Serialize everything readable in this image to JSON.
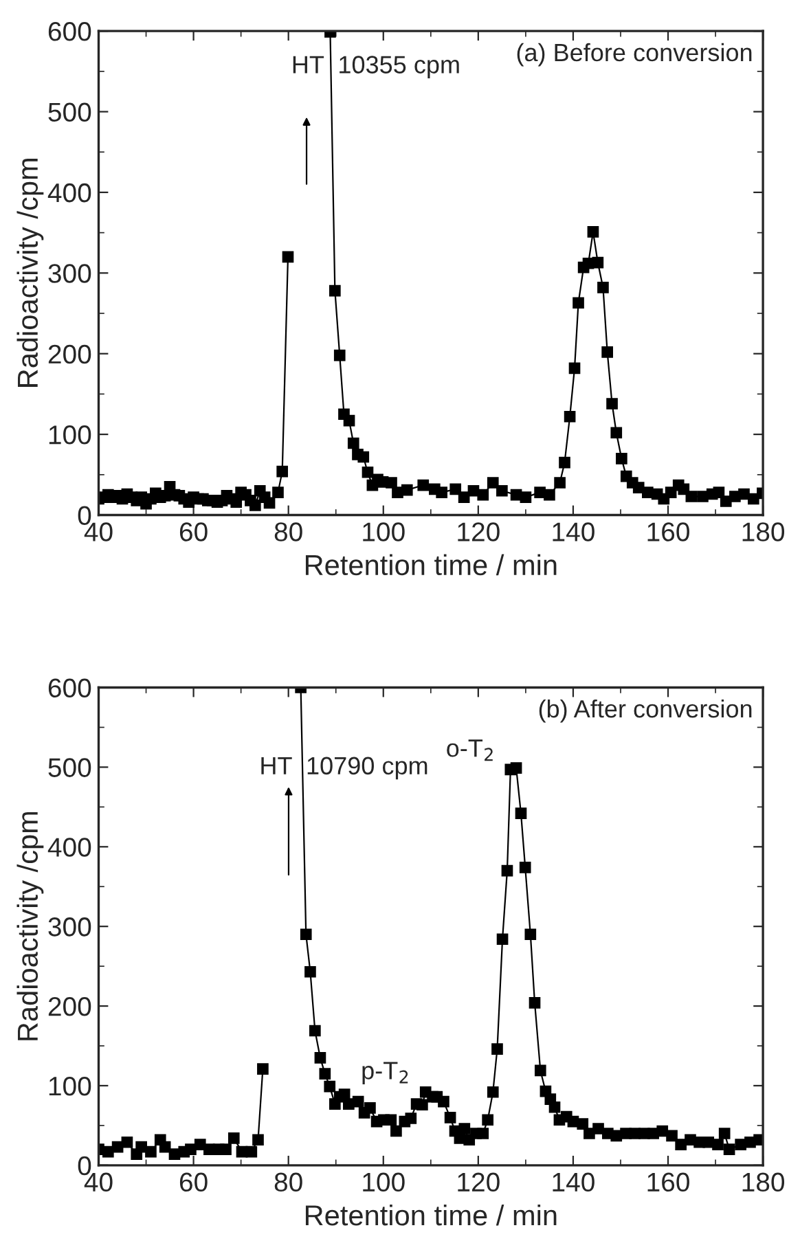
{
  "chart_data": [
    {
      "type": "line",
      "title": "(a) Before conversion",
      "xlabel": "Retention time / min",
      "ylabel": "Radioactivity /cpm",
      "xlim": [
        40,
        180
      ],
      "ylim": [
        0,
        600
      ],
      "xticks": [
        40,
        60,
        80,
        100,
        120,
        140,
        160,
        180
      ],
      "yticks": [
        0,
        100,
        200,
        300,
        400,
        500,
        600
      ],
      "marker": "square",
      "line_style": "solid",
      "annotations": [
        "HT  10355 cpm"
      ],
      "series": [
        {
          "color": "#000000",
          "x": [
            40,
            41,
            42,
            43,
            44,
            45,
            46,
            47,
            48,
            49,
            50,
            51,
            52,
            53,
            54,
            55,
            56,
            57,
            58,
            59,
            60,
            61,
            62,
            63,
            64,
            65,
            66,
            67,
            68,
            69,
            70,
            71,
            72,
            73,
            74,
            75,
            76,
            77.8,
            78.7,
            79.9,
            84,
            88.8,
            89.8,
            90.8,
            91.7,
            92.8,
            93.7,
            94.6,
            95.8,
            96.7,
            97.7,
            98.8,
            99.9,
            101.7,
            103,
            105,
            108.4,
            110.8,
            112.3,
            115.2,
            117,
            119,
            121,
            123.1,
            125,
            128,
            130,
            133,
            135,
            137.2,
            138.2,
            139.3,
            140.3,
            141.1,
            142.2,
            143.2,
            144.2,
            145.2,
            146.3,
            147.2,
            148.2,
            149.1,
            150.2,
            151.2,
            152.5,
            153.8,
            155.7,
            157.7,
            159.1,
            160.6,
            162.2,
            163.3,
            164.9,
            167.3,
            169.3,
            170.7,
            172.2,
            174.1,
            176,
            178,
            179.9
          ],
          "values": [
            20,
            22,
            25,
            22,
            24,
            20,
            26,
            22,
            18,
            22,
            14,
            20,
            27,
            22,
            24,
            35,
            25,
            24,
            20,
            16,
            22,
            20,
            20,
            18,
            18,
            16,
            18,
            24,
            20,
            16,
            28,
            25,
            18,
            12,
            30,
            22,
            15,
            28,
            54,
            320,
            null,
            599,
            278,
            198,
            125,
            117,
            89,
            75,
            72,
            53,
            37,
            44,
            41,
            40,
            28,
            31,
            37,
            32,
            28,
            32,
            22,
            30,
            25,
            40,
            30,
            25,
            22,
            28,
            25,
            40,
            65,
            122,
            182,
            263,
            307,
            312,
            351,
            313,
            282,
            202,
            138,
            102,
            70,
            48,
            40,
            34,
            28,
            26,
            20,
            28,
            37,
            32,
            23,
            23,
            26,
            28,
            17,
            23,
            26,
            20,
            27
          ]
        }
      ]
    },
    {
      "type": "line",
      "title": "(b) After conversion",
      "xlabel": "Retention time / min",
      "ylabel": "Radioactivity /cpm",
      "xlim": [
        40,
        180
      ],
      "ylim": [
        0,
        600
      ],
      "xticks": [
        40,
        60,
        80,
        100,
        120,
        140,
        160,
        180
      ],
      "yticks": [
        0,
        100,
        200,
        300,
        400,
        500,
        600
      ],
      "marker": "square",
      "line_style": "solid",
      "annotations": [
        "HT  10790 cpm",
        {
          "text": "o-T$_{2}$",
          "x": 126.8,
          "y": 497
        },
        {
          "text": "p-T$_{2}$",
          "x": 108.9,
          "y": 92
        }
      ],
      "series": [
        {
          "color": "#000000",
          "x": [
            40,
            42,
            44,
            46,
            48,
            49,
            51,
            53,
            54,
            56,
            58,
            59.4,
            61.4,
            63.3,
            65.3,
            66.8,
            68.5,
            70.2,
            72.2,
            73.6,
            74.6,
            78,
            82.6,
            83.7,
            84.6,
            85.6,
            86.7,
            87.7,
            88.7,
            89.8,
            90.8,
            91.8,
            92.7,
            94.7,
            96,
            97.2,
            98.6,
            100.1,
            101.6,
            102.7,
            104.5,
            105.8,
            107,
            108.2,
            108.9,
            110.4,
            111.3,
            112.7,
            114.1,
            115.1,
            116.1,
            117.1,
            118.1,
            119.5,
            121,
            122,
            123.1,
            124,
            125.1,
            126.1,
            126.8,
            128,
            129,
            129.9,
            131,
            131.9,
            133.1,
            134.2,
            135.2,
            136.1,
            137.1,
            138.6,
            140,
            142,
            143.4,
            145.3,
            147.3,
            149.1,
            151.1,
            153,
            155,
            156.9,
            158.8,
            160.8,
            162.7,
            164.7,
            166.6,
            168.5,
            170.5,
            171.9,
            172.9,
            175.3,
            177.3,
            179.2
          ],
          "values": [
            20,
            17,
            23,
            29,
            14,
            23,
            17,
            32,
            23,
            14,
            17,
            20,
            26,
            20,
            20,
            20,
            34,
            17,
            17,
            32,
            121,
            null,
            600,
            290,
            243,
            169,
            135,
            115,
            99,
            77,
            86,
            89,
            77,
            80,
            66,
            72,
            55,
            57,
            57,
            43,
            55,
            59,
            77,
            76,
            92,
            86,
            86,
            80,
            60,
            43,
            34,
            46,
            32,
            40,
            40,
            57,
            92,
            146,
            284,
            370,
            497,
            499,
            442,
            374,
            290,
            204,
            119,
            93,
            83,
            73,
            57,
            61,
            55,
            52,
            40,
            46,
            40,
            37,
            40,
            40,
            40,
            40,
            43,
            37,
            26,
            32,
            29,
            29,
            26,
            40,
            20,
            26,
            29,
            32
          ]
        }
      ]
    }
  ]
}
